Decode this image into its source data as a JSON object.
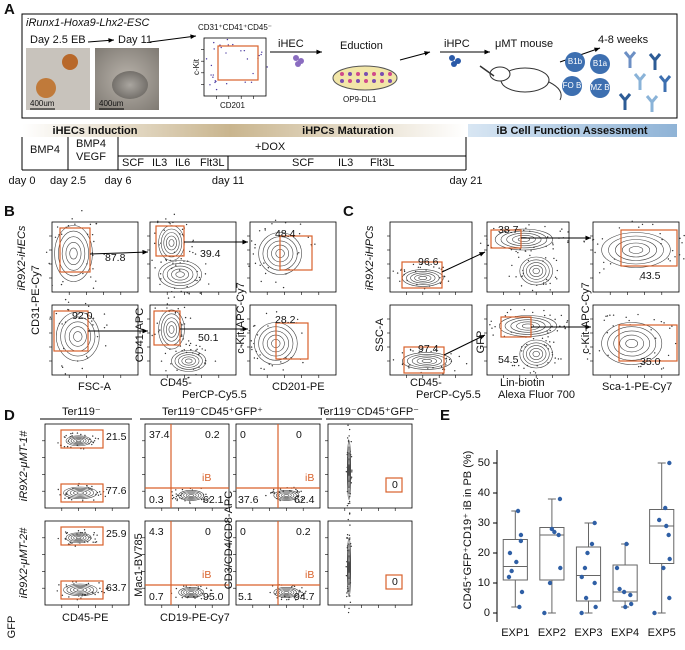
{
  "panel_labels": [
    "A",
    "B",
    "C",
    "D",
    "E"
  ],
  "A": {
    "cell_line": "iRunx1-Hoxa9-Lhx2-ESC",
    "photos": [
      {
        "label": "Day 2.5 EB",
        "scale": "400um"
      },
      {
        "label": "Day 11",
        "scale": "400um"
      }
    ],
    "flow": {
      "title": "CD31⁺CD41⁺CD45⁻",
      "x_label": "CD201",
      "y_label": "c-Kit"
    },
    "steps": [
      "iHEC",
      "Eduction",
      "OP9-DL1",
      "iHPC",
      "μMT mouse",
      "4-8 weeks"
    ],
    "b_cells": [
      "B1b",
      "B1a",
      "FO B",
      "MZ B"
    ],
    "phases": [
      "iHECs Induction",
      "iHPCs Maturation",
      "iB Cell Function Assessment"
    ],
    "factors": [
      "BMP4",
      "BMP4",
      "VEGF",
      "SCF",
      "IL3",
      "IL6",
      "Flt3L",
      "+DOX",
      "SCF",
      "IL3",
      "Flt3L"
    ],
    "days": [
      "day 0",
      "day 2.5",
      "day 6",
      "day 11",
      "day 21"
    ]
  },
  "B": {
    "row_label": "iR9X2-iHECs",
    "axis_labels": [
      "CD31-PE-Cy7",
      "FSC-A",
      "CD41-APC",
      "CD45-",
      "PerCP-Cy5.5",
      "c-Kit-APC-Cy7",
      "CD201-PE"
    ],
    "gate_values": [
      "87.8",
      "39.4",
      "48.4",
      "92.0",
      "50.1",
      "28.2"
    ]
  },
  "C": {
    "row_label": "iR9X2-iHPCs",
    "axis_labels": [
      "SSC-A",
      "CD45-",
      "PerCP-Cy5.5",
      "GFP",
      "Lin-biotin",
      "Alexa Fluor 700",
      "c-Kit-APC-Cy7",
      "Sca-1-PE-Cy7"
    ],
    "gate_values": [
      "96.6",
      "38.7",
      "43.5",
      "97.4",
      "54.5",
      "35.0"
    ]
  },
  "D": {
    "headers": [
      "Ter119⁻",
      "Ter119⁻CD45⁺GFP⁺",
      "Ter119⁻CD45⁺GFP⁻"
    ],
    "row_labels": [
      "iR9X2-μMT-1#",
      "iR9X2-μMT-2#"
    ],
    "axis_labels": [
      "GFP",
      "CD45-PE",
      "Mac1-BV785",
      "CD19-PE-Cy7",
      "CD3/CD4/CD8-APC"
    ],
    "gate_label": "iB",
    "rows": [
      {
        "gfp": [
          "21.5",
          "77.6"
        ],
        "mac1_cd19": [
          "37.4",
          "0.2",
          "0.3",
          "62.1"
        ],
        "cd3_cd19": [
          "0",
          "0",
          "37.6",
          "62.4"
        ],
        "gfp_neg": "0"
      },
      {
        "gfp": [
          "25.9",
          "63.7"
        ],
        "mac1_cd19": [
          "4.3",
          "0",
          "0.7",
          "95.0"
        ],
        "cd3_cd19": [
          "0",
          "0.2",
          "5.1",
          "94.7"
        ],
        "gfp_neg": "0"
      }
    ]
  },
  "E": {
    "type": "box",
    "y_label": "CD45⁺GFP⁺CD19⁺ iB in PB (%)",
    "categories": [
      "EXP1",
      "EXP2",
      "EXP3",
      "EXP4",
      "EXP5"
    ],
    "ylim": [
      -3,
      53
    ],
    "yticks": [
      0,
      10,
      20,
      30,
      40,
      50
    ],
    "point_color": "#2f5fa5",
    "boxes": [
      {
        "min": 2,
        "q1": 11,
        "median": 15.5,
        "q3": 24.5,
        "max": 34
      },
      {
        "min": 0,
        "q1": 11,
        "median": 26,
        "q3": 28.5,
        "max": 38
      },
      {
        "min": 0,
        "q1": 4,
        "median": 12.5,
        "q3": 22,
        "max": 30
      },
      {
        "min": 2,
        "q1": 4,
        "median": 7,
        "q3": 16,
        "max": 23
      },
      {
        "min": 0,
        "q1": 16.5,
        "median": 29,
        "q3": 34.5,
        "max": 50
      }
    ],
    "points": [
      [
        34,
        26,
        24,
        20,
        17,
        14,
        12,
        7,
        2
      ],
      [
        38,
        28,
        27,
        26,
        15,
        10,
        0
      ],
      [
        30,
        23,
        20,
        15,
        12,
        10,
        5,
        2,
        0
      ],
      [
        23,
        15,
        8,
        7,
        6,
        3,
        2
      ],
      [
        50,
        35,
        31,
        29,
        26,
        18,
        15,
        5,
        0
      ]
    ]
  }
}
